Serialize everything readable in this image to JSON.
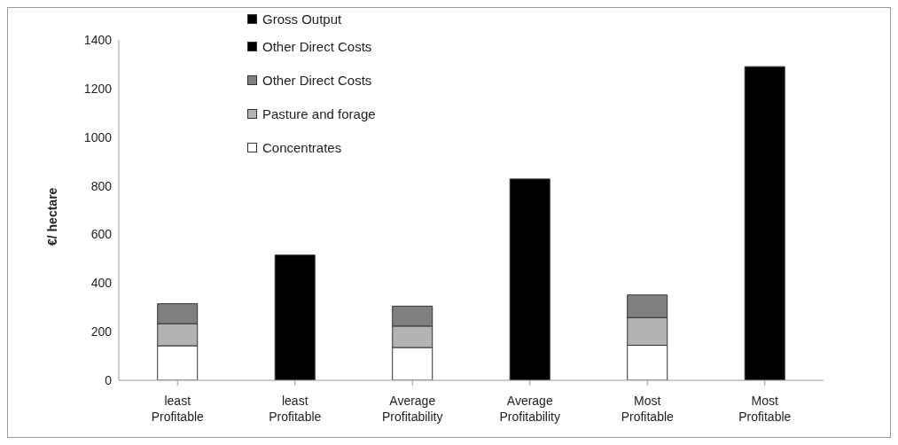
{
  "chart_data": {
    "type": "bar",
    "ylabel": "€/ hectare",
    "stacked": true,
    "categories": [
      "least Profitable",
      "least Profitable",
      "Average Profitability",
      "Average Profitability",
      "Most Profitable",
      "Most Profitable"
    ],
    "series": [
      {
        "name": "Concentrates",
        "color": "#ffffff",
        "values": [
          142,
          null,
          135,
          null,
          144,
          null
        ]
      },
      {
        "name": "Pasture and forage",
        "color": "#b3b3b3",
        "values": [
          91,
          null,
          88,
          null,
          114,
          null
        ]
      },
      {
        "name": "Other Direct Costs",
        "color": "#808080",
        "values": [
          82,
          null,
          82,
          null,
          93,
          null
        ]
      },
      {
        "name": "Other Direct Costs",
        "color": "#000000",
        "values": [
          null,
          null,
          null,
          null,
          null,
          null
        ]
      },
      {
        "name": "Gross Output",
        "color": "#000000",
        "values": [
          null,
          515,
          null,
          828,
          null,
          1290
        ]
      }
    ],
    "ylim": [
      0,
      1400
    ],
    "yticks": [
      0,
      200,
      400,
      600,
      800,
      1000,
      1200,
      1400
    ],
    "grid": false,
    "legend": "top left"
  }
}
